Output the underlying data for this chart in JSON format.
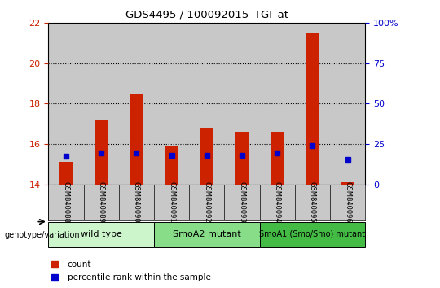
{
  "title": "GDS4495 / 100092015_TGI_at",
  "samples": [
    "GSM840088",
    "GSM840089",
    "GSM840090",
    "GSM840091",
    "GSM840092",
    "GSM840093",
    "GSM840094",
    "GSM840095",
    "GSM840096"
  ],
  "red_bar_top": [
    15.1,
    17.2,
    18.5,
    15.9,
    16.8,
    16.6,
    16.6,
    21.5,
    14.1
  ],
  "blue_marker_left_val": [
    15.4,
    15.55,
    15.55,
    15.42,
    15.42,
    15.42,
    15.55,
    15.9,
    15.22
  ],
  "bar_baseline": 14.0,
  "ylim_left": [
    14,
    22
  ],
  "ylim_right": [
    0,
    100
  ],
  "yticks_left": [
    14,
    16,
    18,
    20,
    22
  ],
  "yticks_right": [
    0,
    25,
    50,
    75,
    100
  ],
  "ytick_right_labels": [
    "0",
    "25",
    "50",
    "75",
    "100%"
  ],
  "group_labels": [
    "wild type",
    "SmoA2 mutant",
    "SmoA1 (Smo/Smo) mutant"
  ],
  "group_ranges": [
    [
      0,
      2
    ],
    [
      3,
      5
    ],
    [
      6,
      8
    ]
  ],
  "group_colors": [
    "#ccf5cc",
    "#88dd88",
    "#44bb44"
  ],
  "bar_color": "#cc2200",
  "blue_color": "#0000cc",
  "bg_sample": "#c8c8c8",
  "legend_count": "count",
  "legend_pct": "percentile rank within the sample",
  "xlabel": "genotype/variation"
}
